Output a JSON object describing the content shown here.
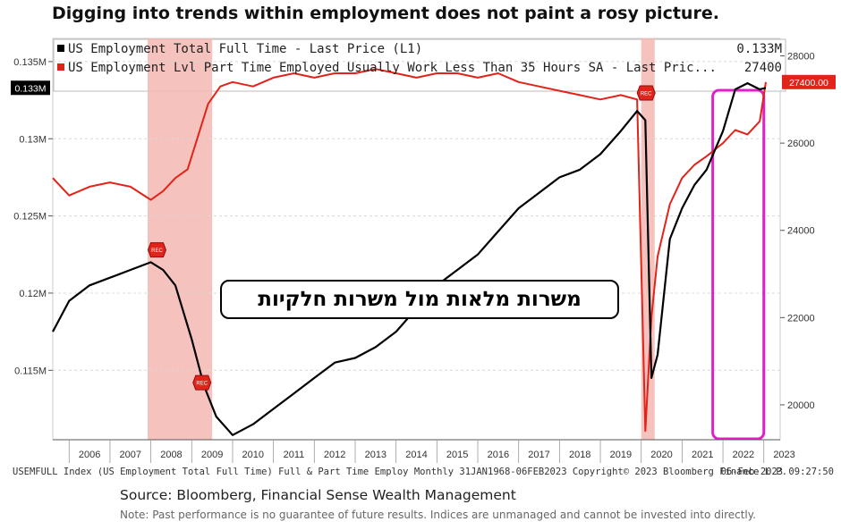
{
  "headline": "Digging into trends within employment does not paint a rosy picture.",
  "callout": "משרות מלאות מול משרות חלקיות",
  "legend": {
    "series1_label": "US Employment Total Full Time - Last Price (L1)",
    "series1_value": "0.133M",
    "series2_label": "US Employment Lvl Part Time Employed Usually Work Less Than 35 Hours SA - Last Pric...",
    "series2_value": "27400"
  },
  "left_axis": {
    "ticks": [
      "0.135M",
      "0.13M",
      "0.125M",
      "0.12M",
      "0.115M"
    ],
    "current_label": "0.133M"
  },
  "right_axis": {
    "ticks": [
      "28000",
      "26000",
      "24000",
      "22000",
      "20000"
    ],
    "current_label": "27400.00"
  },
  "x_ticks": [
    "2006",
    "2007",
    "2008",
    "2009",
    "2010",
    "2011",
    "2012",
    "2013",
    "2014",
    "2015",
    "2016",
    "2017",
    "2018",
    "2019",
    "2020",
    "2021",
    "2022",
    "2023"
  ],
  "recession_marker": "REC",
  "footer": {
    "left": "USEMFULL Index (US Employment Total Full Time) Full & Part Time Employ  Monthly 31JAN1968-06FEB2023  Copyright© 2023 Bloomberg Finance L.P.",
    "right": "06-Feb-2023 09:27:50"
  },
  "source": "Source: Bloomberg, Financial Sense Wealth Management",
  "note": "Note: Past performance is no guarantee of future results. Indices are unmanaged and cannot be invested into directly.",
  "colors": {
    "full_time": "#000000",
    "part_time": "#e2231a",
    "recession": "#f5b7b1",
    "highlight_box": "#e020c8"
  },
  "chart_data": {
    "type": "line",
    "title": "Digging into trends within employment does not paint a rosy picture.",
    "x_range": [
      2005.6,
      2023.4
    ],
    "recessions": [
      [
        2007.92,
        2009.5
      ],
      [
        2020.0,
        2020.33
      ]
    ],
    "highlight_range": [
      2021.75,
      2023.0
    ],
    "series": [
      {
        "name": "US Employment Total Full Time - Last Price (L1)",
        "axis": "left",
        "unit": "M",
        "ylim": [
          0.1105,
          0.1365
        ],
        "x": [
          2005.6,
          2006.0,
          2006.5,
          2007.0,
          2007.5,
          2008.0,
          2008.3,
          2008.6,
          2009.0,
          2009.3,
          2009.6,
          2010.0,
          2010.5,
          2011.0,
          2011.5,
          2012.0,
          2012.5,
          2013.0,
          2013.5,
          2014.0,
          2014.5,
          2015.0,
          2015.5,
          2016.0,
          2016.5,
          2017.0,
          2017.5,
          2018.0,
          2018.5,
          2019.0,
          2019.5,
          2019.9,
          2020.1,
          2020.25,
          2020.4,
          2020.7,
          2021.0,
          2021.3,
          2021.6,
          2022.0,
          2022.3,
          2022.6,
          2022.9,
          2023.05
        ],
        "y": [
          0.1175,
          0.1195,
          0.1205,
          0.121,
          0.1215,
          0.122,
          0.1215,
          0.1205,
          0.117,
          0.114,
          0.112,
          0.1108,
          0.1115,
          0.1125,
          0.1135,
          0.1145,
          0.1155,
          0.1158,
          0.1165,
          0.1175,
          0.119,
          0.1205,
          0.1215,
          0.1225,
          0.124,
          0.1255,
          0.1265,
          0.1275,
          0.128,
          0.129,
          0.1305,
          0.1318,
          0.1312,
          0.1145,
          0.116,
          0.1235,
          0.1255,
          0.127,
          0.128,
          0.1305,
          0.1332,
          0.1336,
          0.1332,
          0.1333
        ]
      },
      {
        "name": "US Employment Lvl Part Time Employed Usually Work Less Than 35 Hours SA - Last Pric...",
        "axis": "right",
        "unit": "",
        "ylim": [
          19200,
          28400
        ],
        "x": [
          2005.6,
          2006.0,
          2006.5,
          2007.0,
          2007.5,
          2008.0,
          2008.3,
          2008.6,
          2008.9,
          2009.1,
          2009.4,
          2009.7,
          2010.0,
          2010.5,
          2011.0,
          2011.5,
          2012.0,
          2012.5,
          2013.0,
          2013.5,
          2014.0,
          2014.5,
          2015.0,
          2015.5,
          2016.0,
          2016.5,
          2017.0,
          2017.5,
          2018.0,
          2018.5,
          2019.0,
          2019.5,
          2019.9,
          2020.1,
          2020.25,
          2020.4,
          2020.7,
          2021.0,
          2021.3,
          2021.6,
          2022.0,
          2022.3,
          2022.6,
          2022.9,
          2023.05
        ],
        "y": [
          25200,
          24800,
          25000,
          25100,
          25000,
          24700,
          24900,
          25200,
          25400,
          26000,
          26900,
          27300,
          27400,
          27300,
          27500,
          27600,
          27500,
          27600,
          27600,
          27700,
          27600,
          27500,
          27600,
          27600,
          27500,
          27600,
          27400,
          27300,
          27200,
          27100,
          27000,
          27100,
          27000,
          19400,
          22000,
          23400,
          24600,
          25200,
          25500,
          25700,
          26000,
          26300,
          26200,
          26500,
          27400
        ]
      }
    ]
  }
}
